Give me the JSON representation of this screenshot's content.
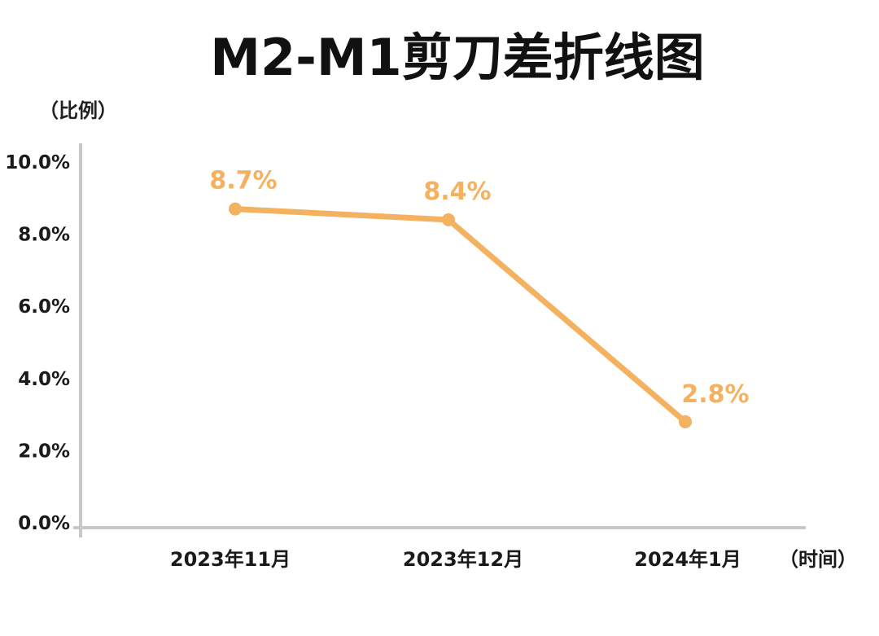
{
  "chart_data": {
    "type": "line",
    "title": "M2-M1剪刀差折线图",
    "ylabel": "（比例）",
    "xlabel": "（时间）",
    "ylim": [
      0,
      10
    ],
    "yticks": [
      "0.0%",
      "2.0%",
      "4.0%",
      "6.0%",
      "8.0%",
      "10.0%"
    ],
    "categories": [
      "2023年11月",
      "2023年12月",
      "2024年1月"
    ],
    "series": [
      {
        "values": [
          8.7,
          8.4,
          2.8
        ],
        "labels": [
          "8.7%",
          "8.4%",
          "2.8%"
        ],
        "color": "#F4B160"
      }
    ],
    "grid": false,
    "axis_color": "#c8c8c8"
  }
}
